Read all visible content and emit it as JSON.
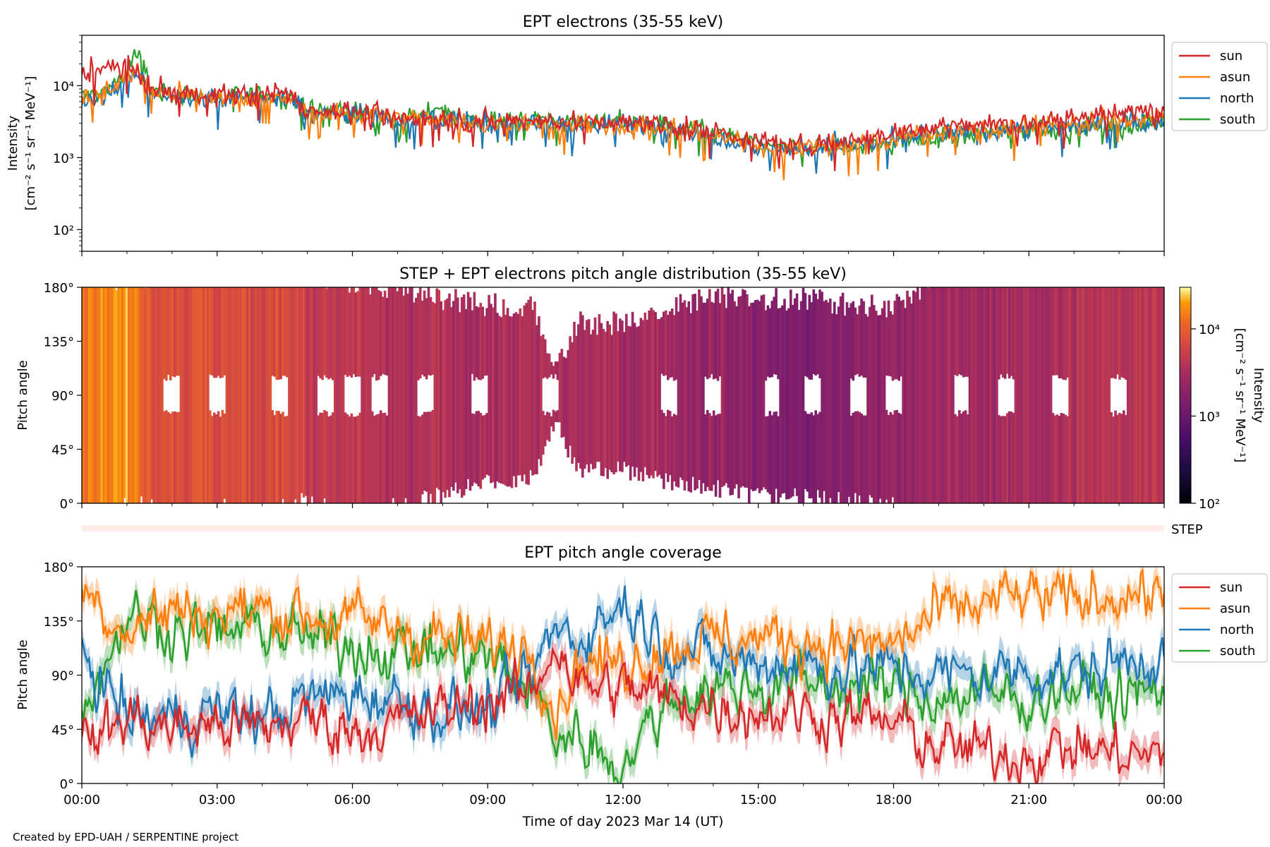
{
  "credit": "Created by EPD-UAH / SERPENTINE project",
  "colors": {
    "sun": "#d62728",
    "asun": "#ff7f0e",
    "north": "#1f77b4",
    "south": "#2ca02c"
  },
  "chart_data": [
    {
      "type": "line",
      "title": "EPT electrons (35-55 keV)",
      "ylabel_line1": "Intensity",
      "ylabel_line2": "[cm⁻² s⁻¹ sr⁻¹ MeV⁻¹]",
      "yscale": "log",
      "ylim": [
        50,
        50000
      ],
      "yticks": [
        "10²",
        "10³",
        "10⁴"
      ],
      "legend_position": "outside-right",
      "grid": false,
      "x_hours": [
        0,
        0.5,
        1.0,
        1.2,
        1.5,
        2,
        3,
        4,
        4.7,
        5,
        6,
        7,
        8,
        9,
        10,
        11,
        12,
        13,
        14,
        15,
        15.5,
        16,
        17,
        18,
        19,
        20,
        21,
        22,
        23,
        24
      ],
      "series": [
        {
          "name": "sun",
          "values": [
            15000,
            17000,
            19000,
            16000,
            9000,
            8000,
            7500,
            7500,
            7000,
            4500,
            4500,
            3500,
            3500,
            3200,
            3300,
            3100,
            3000,
            2800,
            2300,
            1700,
            1500,
            1500,
            1800,
            2200,
            2700,
            2900,
            3200,
            3700,
            4000,
            5000
          ]
        },
        {
          "name": "asun",
          "values": [
            7000,
            7500,
            13000,
            16000,
            8500,
            7500,
            6500,
            6500,
            6500,
            4000,
            4000,
            3500,
            3500,
            3000,
            3000,
            2800,
            2700,
            2500,
            2000,
            1500,
            1300,
            1400,
            1500,
            1800,
            2300,
            2500,
            2700,
            3000,
            3200,
            3500
          ]
        },
        {
          "name": "north",
          "values": [
            6500,
            7000,
            12000,
            15000,
            8000,
            7000,
            6500,
            6500,
            6500,
            4000,
            4500,
            3300,
            3500,
            2900,
            3200,
            2800,
            2900,
            2600,
            2000,
            1400,
            1300,
            1300,
            1500,
            1700,
            2100,
            2300,
            2500,
            2800,
            3000,
            3200
          ]
        },
        {
          "name": "south",
          "values": [
            7000,
            8000,
            15000,
            28000,
            9000,
            7500,
            7000,
            7500,
            7000,
            4500,
            4300,
            3400,
            4000,
            3300,
            3400,
            3000,
            3200,
            2700,
            2200,
            1600,
            1300,
            1400,
            1400,
            1600,
            1900,
            2200,
            2400,
            2600,
            2800,
            3000
          ]
        }
      ]
    },
    {
      "type": "heatmap",
      "title": "STEP + EPT electrons pitch angle distribution (35-55 keV)",
      "ylabel": "Pitch angle",
      "ylim": [
        0,
        180
      ],
      "yticks": [
        "0°",
        "45°",
        "90°",
        "135°",
        "180°"
      ],
      "colorbar_label_line1": "Intensity",
      "colorbar_label_line2": "[cm⁻² s⁻¹ sr⁻¹ MeV⁻¹]",
      "colorbar_ticks": [
        "10²",
        "10³",
        "10⁴"
      ],
      "colorbar_range": [
        100,
        30000
      ],
      "colormap": "inferno",
      "step_label": "STEP"
    },
    {
      "type": "line",
      "title": "EPT pitch angle coverage",
      "ylabel": "Pitch angle",
      "xlabel": "Time of day 2023 Mar 14 (UT)",
      "xticks": [
        "00:00",
        "03:00",
        "06:00",
        "09:00",
        "12:00",
        "15:00",
        "18:00",
        "21:00",
        "00:00"
      ],
      "ylim": [
        0,
        180
      ],
      "yticks": [
        "0°",
        "45°",
        "90°",
        "135°",
        "180°"
      ],
      "legend_position": "outside-right",
      "x_hours": [
        0,
        1,
        2,
        3,
        4,
        5,
        6,
        7,
        8,
        9,
        10,
        10.5,
        11,
        12,
        13,
        14,
        15,
        16,
        17,
        18,
        19,
        20,
        21,
        22,
        23,
        24
      ],
      "series": [
        {
          "name": "sun",
          "values": [
            30,
            55,
            45,
            50,
            45,
            55,
            45,
            50,
            60,
            70,
            75,
            120,
            80,
            80,
            70,
            65,
            60,
            60,
            55,
            50,
            30,
            25,
            25,
            30,
            25,
            20
          ]
        },
        {
          "name": "asun",
          "values": [
            160,
            130,
            145,
            140,
            145,
            140,
            135,
            130,
            120,
            115,
            115,
            60,
            100,
            100,
            115,
            120,
            120,
            120,
            115,
            115,
            140,
            150,
            155,
            150,
            160,
            155
          ]
        },
        {
          "name": "north",
          "values": [
            110,
            55,
            55,
            60,
            55,
            70,
            75,
            70,
            60,
            60,
            90,
            130,
            120,
            150,
            115,
            105,
            100,
            100,
            95,
            95,
            90,
            90,
            95,
            90,
            100,
            110
          ]
        },
        {
          "name": "south",
          "values": [
            60,
            140,
            130,
            125,
            130,
            120,
            115,
            110,
            110,
            105,
            75,
            40,
            40,
            15,
            70,
            80,
            80,
            85,
            80,
            80,
            70,
            75,
            70,
            80,
            70,
            80
          ]
        }
      ]
    }
  ]
}
